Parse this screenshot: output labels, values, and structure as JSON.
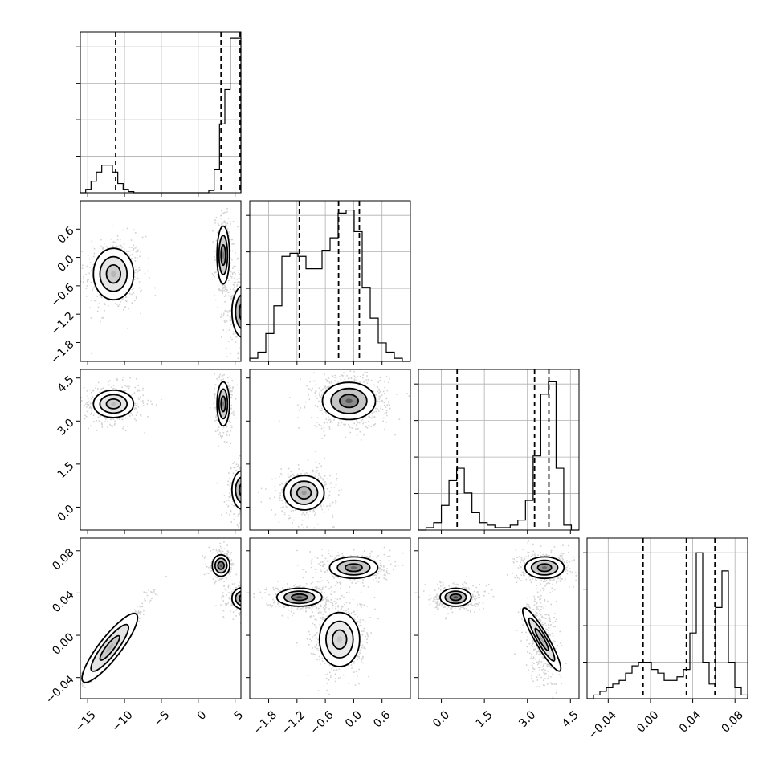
{
  "chart_data": {
    "type": "corner",
    "n_params": 4,
    "parameters": [
      {
        "range": [
          -16,
          5.8
        ],
        "ticks": [
          -15,
          -10,
          -5,
          0,
          5
        ],
        "tick_labels": [
          "−15",
          "−10",
          "−5",
          "0",
          "5"
        ]
      },
      {
        "range": [
          -2.2,
          1.2
        ],
        "ticks": [
          -1.8,
          -1.2,
          -0.6,
          0.0,
          0.6
        ],
        "tick_labels": [
          "−1.8",
          "−1.2",
          "−0.6",
          "0.0",
          "0.6"
        ]
      },
      {
        "range": [
          -0.8,
          4.8
        ],
        "ticks": [
          0.0,
          1.5,
          3.0,
          4.5
        ],
        "tick_labels": [
          "0.0",
          "1.5",
          "3.0",
          "4.5"
        ]
      },
      {
        "range": [
          -0.06,
          0.092
        ],
        "ticks": [
          -0.04,
          0.0,
          0.04,
          0.08
        ],
        "tick_labels": [
          "−0.04",
          "0.00",
          "0.04",
          "0.08"
        ]
      }
    ],
    "histograms": [
      {
        "counts": [
          0,
          3,
          10,
          18,
          24,
          24,
          18,
          8,
          3,
          1,
          0,
          0,
          0,
          0,
          0,
          0,
          0,
          0,
          0,
          0,
          0,
          0,
          0,
          0,
          2,
          20,
          60,
          90,
          135,
          135
        ],
        "quantiles": [
          -11.2,
          3.1,
          5.7
        ],
        "ymax": 140
      },
      {
        "counts": [
          1,
          3,
          9,
          18,
          34,
          35,
          34,
          30,
          30,
          36,
          40,
          48,
          49,
          42,
          24,
          14,
          6,
          3,
          1,
          0
        ],
        "quantiles": [
          -1.15,
          -0.32,
          0.12
        ],
        "ymax": 52
      },
      {
        "counts": [
          0,
          1,
          3,
          10,
          20,
          25,
          15,
          7,
          3,
          2,
          1,
          1,
          2,
          4,
          12,
          30,
          55,
          60,
          25,
          2,
          0
        ],
        "quantiles": [
          0.55,
          3.25,
          3.75
        ],
        "ymax": 65
      },
      {
        "counts": [
          0,
          1,
          2,
          3,
          4,
          5,
          7,
          9,
          10,
          10,
          8,
          7,
          5,
          5,
          6,
          8,
          18,
          40,
          10,
          4,
          25,
          35,
          10,
          3,
          1
        ],
        "quantiles": [
          -0.007,
          0.034,
          0.061
        ],
        "ymax": 44
      }
    ],
    "pairs": [
      {
        "row": 1,
        "col": 0,
        "modes": [
          {
            "mx": -11.5,
            "my": -0.35,
            "sx": 1.6,
            "sy": 0.32,
            "rho": 0.0,
            "n": 450,
            "shade": 0.28
          },
          {
            "mx": 3.4,
            "my": 0.05,
            "sx": 0.5,
            "sy": 0.36,
            "rho": 0.0,
            "n": 300,
            "shade": 0.55
          },
          {
            "mx": 6.1,
            "my": -1.15,
            "sx": 0.9,
            "sy": 0.32,
            "rho": 0.0,
            "n": 450,
            "shade": 0.78
          }
        ]
      },
      {
        "row": 2,
        "col": 0,
        "modes": [
          {
            "mx": -11.5,
            "my": 3.6,
            "sx": 1.6,
            "sy": 0.28,
            "rho": 0.0,
            "n": 450,
            "shade": 0.28
          },
          {
            "mx": 3.4,
            "my": 3.6,
            "sx": 0.5,
            "sy": 0.45,
            "rho": 0.0,
            "n": 300,
            "shade": 0.55
          },
          {
            "mx": 6.1,
            "my": 0.6,
            "sx": 0.9,
            "sy": 0.4,
            "rho": 0.0,
            "n": 450,
            "shade": 0.7
          }
        ]
      },
      {
        "row": 3,
        "col": 0,
        "modes": [
          {
            "mx": -12.0,
            "my": -0.012,
            "sx": 2.0,
            "sy": 0.018,
            "rho": 0.98,
            "n": 550,
            "shade": 0.3
          },
          {
            "mx": 3.1,
            "my": 0.066,
            "sx": 0.7,
            "sy": 0.006,
            "rho": 0.0,
            "n": 250,
            "shade": 0.7
          },
          {
            "mx": 6.1,
            "my": 0.035,
            "sx": 0.9,
            "sy": 0.006,
            "rho": 0.0,
            "n": 400,
            "shade": 0.75
          }
        ]
      },
      {
        "row": 2,
        "col": 1,
        "modes": [
          {
            "mx": -0.1,
            "my": 3.7,
            "sx": 0.33,
            "sy": 0.38,
            "rho": 0.0,
            "n": 700,
            "shade": 0.65
          },
          {
            "mx": -1.05,
            "my": 0.5,
            "sx": 0.25,
            "sy": 0.35,
            "rho": 0.0,
            "n": 450,
            "shade": 0.4
          }
        ]
      },
      {
        "row": 3,
        "col": 1,
        "modes": [
          {
            "mx": 0.0,
            "my": 0.064,
            "sx": 0.3,
            "sy": 0.006,
            "rho": 0.0,
            "n": 450,
            "shade": 0.6
          },
          {
            "mx": -1.15,
            "my": 0.036,
            "sx": 0.28,
            "sy": 0.005,
            "rho": 0.0,
            "n": 450,
            "shade": 0.75
          },
          {
            "mx": -0.3,
            "my": -0.004,
            "sx": 0.25,
            "sy": 0.015,
            "rho": 0.0,
            "n": 550,
            "shade": 0.22
          }
        ]
      },
      {
        "row": 3,
        "col": 2,
        "modes": [
          {
            "mx": 3.6,
            "my": 0.064,
            "sx": 0.4,
            "sy": 0.006,
            "rho": 0.0,
            "n": 450,
            "shade": 0.6
          },
          {
            "mx": 0.5,
            "my": 0.036,
            "sx": 0.32,
            "sy": 0.005,
            "rho": 0.0,
            "n": 450,
            "shade": 0.75
          },
          {
            "mx": 3.5,
            "my": -0.004,
            "sx": 0.25,
            "sy": 0.018,
            "rho": -0.3,
            "n": 450,
            "shade": 0.35
          }
        ]
      }
    ],
    "grid": true,
    "colors": {
      "line": "#000000",
      "grid": "#b0b0b0",
      "points": "#000000"
    }
  }
}
